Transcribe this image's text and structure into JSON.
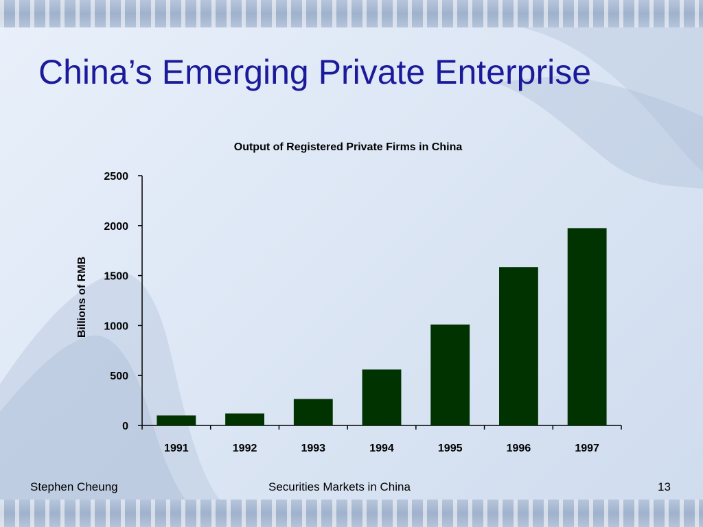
{
  "slide": {
    "title": "China’s Emerging Private Enterprise"
  },
  "footer": {
    "author": "Stephen Cheung",
    "course": "Securities Markets in China",
    "page_number": "13"
  },
  "colors": {
    "title": "#1a1a9a",
    "bar": "#003300",
    "axis": "#000000"
  },
  "chart_data": {
    "type": "bar",
    "title": "Output of Registered Private Firms in China",
    "xlabel": "",
    "ylabel": "Billions of RMB",
    "categories": [
      "1991",
      "1992",
      "1993",
      "1994",
      "1995",
      "1996",
      "1997"
    ],
    "values": [
      100,
      120,
      265,
      560,
      1010,
      1585,
      1975
    ],
    "ylim": [
      0,
      2500
    ],
    "yticks": [
      0,
      500,
      1000,
      1500,
      2000,
      2500
    ],
    "grid": false,
    "legend": "none"
  }
}
